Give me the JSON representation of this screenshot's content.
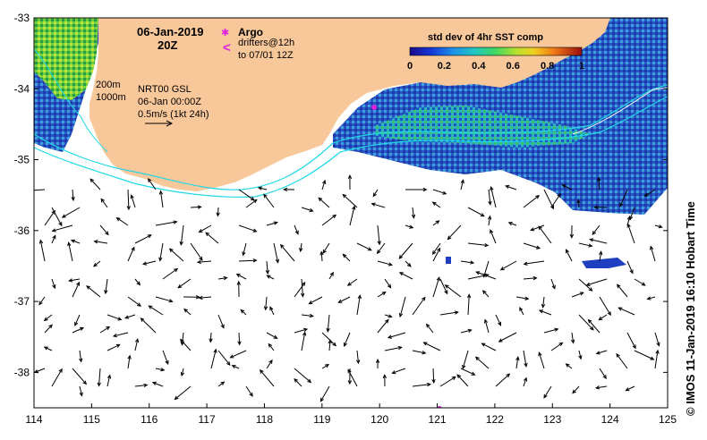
{
  "map": {
    "date": "06-Jan-2019",
    "time": "20Z",
    "lon_ticks": [
      "114",
      "115",
      "116",
      "117",
      "118",
      "119",
      "120",
      "121",
      "122",
      "123",
      "124",
      "125"
    ],
    "lat_ticks": [
      "-33",
      "-34",
      "-35",
      "-36",
      "-37",
      "-38"
    ],
    "lon_range": [
      114,
      125
    ],
    "lat_range": [
      -38.5,
      -33
    ],
    "colors": {
      "land": "#f9c89a",
      "ocean": "#ffffff",
      "isobath": "#22d8e6",
      "vector": "#000000",
      "argo": "#e020e0"
    }
  },
  "legend": {
    "argo_symbol": "✱",
    "argo_label": "Argo",
    "drifter_symbol": "<",
    "drifter_label": "drifters@12h",
    "drifter_label_2": "to 07/01 12Z",
    "isobath_200": "200m",
    "isobath_1000": "1000m",
    "product": "NRT00 GSL",
    "product_time": "06-Jan 00:00Z",
    "scale_label": "0.5m/s (1kt 24h)"
  },
  "colorbar": {
    "title": "std dev of 4hr SST comp",
    "ticks": [
      "0",
      "0.2",
      "0.4",
      "0.6",
      "0.8",
      "1"
    ],
    "range": [
      0,
      1
    ]
  },
  "credit": "© IMOS 11-Jan-2019 16:10 Hobart Time"
}
